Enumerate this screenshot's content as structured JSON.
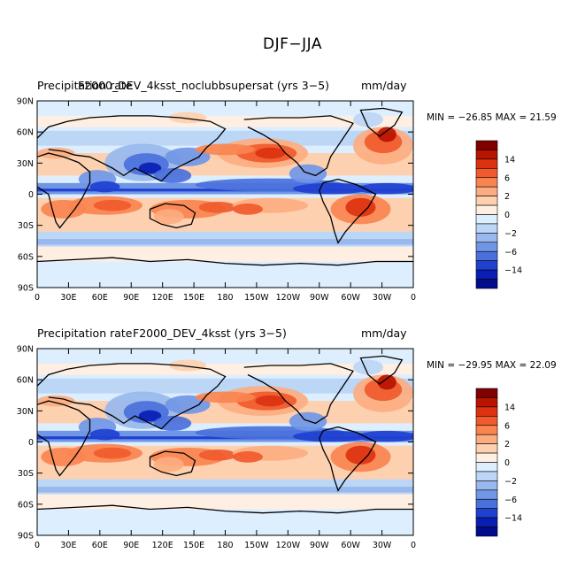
{
  "title": "DJF−JJA",
  "panels": [
    {
      "left_title": "Precipitation rate",
      "center_title": "F2000_DEV_4ksst_noclubbsupersat (yrs 3−5)",
      "units": "mm/day",
      "min_max": "MIN = −26.85 MAX =  21.59"
    },
    {
      "left_title": "Precipitation rate",
      "center_title": "F2000_DEV_4ksst (yrs 3−5)",
      "units": "mm/day",
      "min_max": "MIN = −29.95 MAX =  22.09"
    }
  ],
  "lat_labels": [
    "90N",
    "60N",
    "30N",
    "0",
    "30S",
    "60S",
    "90S"
  ],
  "lon_labels": [
    "0",
    "30E",
    "60E",
    "90E",
    "120E",
    "150E",
    "180",
    "150W",
    "120W",
    "90W",
    "60W",
    "30W",
    "0"
  ],
  "colorbar": {
    "labels": [
      "14",
      "6",
      "2",
      "0",
      "−2",
      "−6",
      "−14"
    ],
    "colors": [
      "#800000",
      "#b81400",
      "#dc3210",
      "#f05a2c",
      "#fa8450",
      "#fcac80",
      "#fdd0b0",
      "#ffefe2",
      "#ddeeff",
      "#bcd6f6",
      "#98b8ee",
      "#7096e6",
      "#4a70dc",
      "#2040d0",
      "#0a1eb4",
      "#000c8a"
    ]
  }
}
